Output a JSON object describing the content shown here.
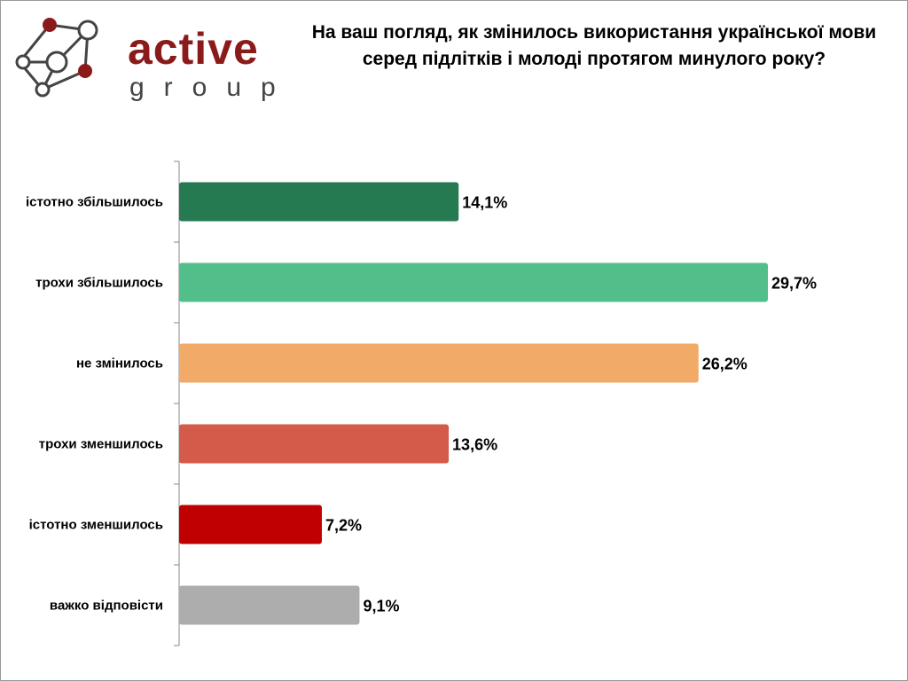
{
  "logo": {
    "text": "active",
    "subtext": "group"
  },
  "chart_data": {
    "type": "bar",
    "orientation": "horizontal",
    "title": "На ваш погляд, як змінилось використання української мови серед підлітків і молоді протягом минулого року?",
    "categories": [
      "істотно збільшилось",
      "трохи збільшилось",
      "не змінилось",
      "трохи зменшилось",
      "істотно зменшилось",
      "важко відповісти"
    ],
    "values": [
      14.1,
      29.7,
      26.2,
      13.6,
      7.2,
      9.1
    ],
    "labels": [
      "14,1%",
      "29,7%",
      "26,2%",
      "13,6%",
      "7,2%",
      "9,1%"
    ],
    "colors": [
      "#257a52",
      "#52be89",
      "#f2aa68",
      "#d45b4a",
      "#c00000",
      "#adadad"
    ],
    "unit": "%",
    "xlim": [
      0,
      30
    ],
    "grid": false,
    "legend": "none"
  }
}
